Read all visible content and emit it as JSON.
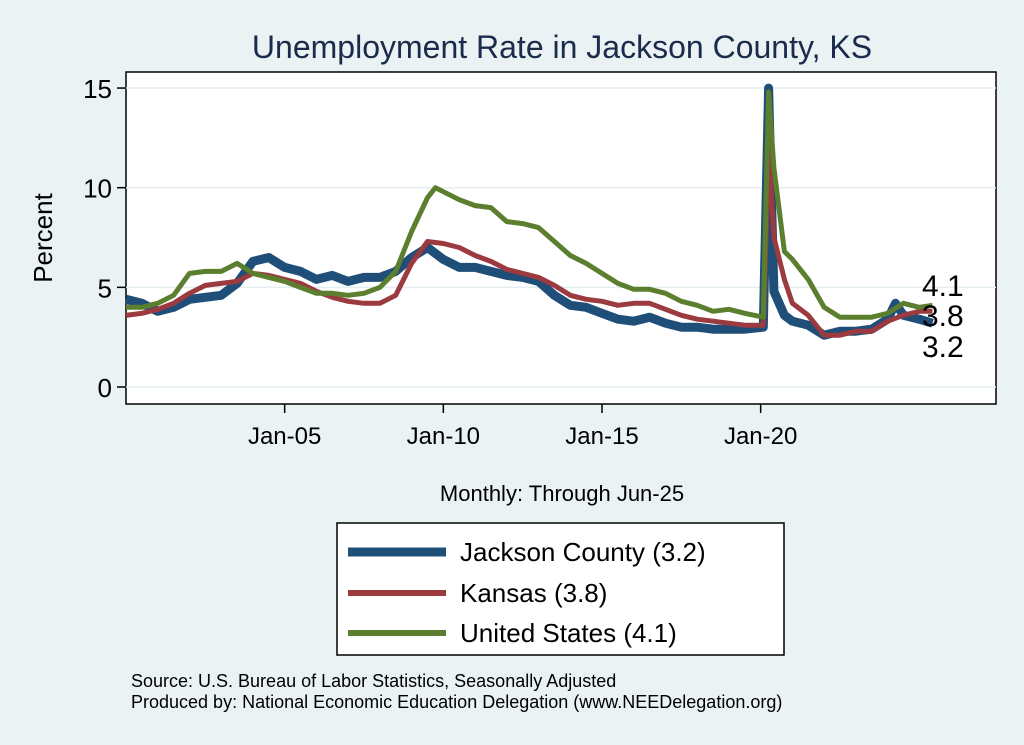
{
  "chart_data": {
    "type": "line",
    "title": "Unemployment Rate in Jackson  County, KS",
    "xlabel": "Monthly: Through Jun-25",
    "ylabel": "Percent",
    "x_ticks": [
      "Jan-05",
      "Jan-10",
      "Jan-15",
      "Jan-20"
    ],
    "y_ticks": [
      "0",
      "5",
      "10",
      "15"
    ],
    "ylim": [
      0,
      15.5
    ],
    "xlim": [
      "2000-01",
      "2027-06"
    ],
    "grid": true,
    "legend_position": "bottom",
    "series": [
      {
        "name": "Jackson  County (3.2)",
        "color": "#1f4e79",
        "end_label": "3.2",
        "points": [
          [
            "2000-01",
            4.4
          ],
          [
            "2000-07",
            4.2
          ],
          [
            "2001-01",
            3.8
          ],
          [
            "2001-07",
            4.0
          ],
          [
            "2002-01",
            4.4
          ],
          [
            "2002-07",
            4.5
          ],
          [
            "2003-01",
            4.6
          ],
          [
            "2003-07",
            5.2
          ],
          [
            "2004-01",
            6.3
          ],
          [
            "2004-07",
            6.5
          ],
          [
            "2005-01",
            6.0
          ],
          [
            "2005-07",
            5.8
          ],
          [
            "2006-01",
            5.4
          ],
          [
            "2006-07",
            5.6
          ],
          [
            "2007-01",
            5.3
          ],
          [
            "2007-07",
            5.5
          ],
          [
            "2008-01",
            5.5
          ],
          [
            "2008-07",
            5.8
          ],
          [
            "2009-01",
            6.5
          ],
          [
            "2009-07",
            7.0
          ],
          [
            "2010-01",
            6.4
          ],
          [
            "2010-07",
            6.0
          ],
          [
            "2011-01",
            6.0
          ],
          [
            "2011-07",
            5.8
          ],
          [
            "2012-01",
            5.6
          ],
          [
            "2012-07",
            5.5
          ],
          [
            "2013-01",
            5.3
          ],
          [
            "2013-07",
            4.6
          ],
          [
            "2014-01",
            4.1
          ],
          [
            "2014-07",
            4.0
          ],
          [
            "2015-01",
            3.7
          ],
          [
            "2015-07",
            3.4
          ],
          [
            "2016-01",
            3.3
          ],
          [
            "2016-07",
            3.5
          ],
          [
            "2017-01",
            3.2
          ],
          [
            "2017-07",
            3.0
          ],
          [
            "2018-01",
            3.0
          ],
          [
            "2018-07",
            2.9
          ],
          [
            "2019-01",
            2.9
          ],
          [
            "2019-07",
            2.9
          ],
          [
            "2020-02",
            3.0
          ],
          [
            "2020-04",
            15.0
          ],
          [
            "2020-06",
            4.8
          ],
          [
            "2020-10",
            3.6
          ],
          [
            "2021-01",
            3.3
          ],
          [
            "2021-07",
            3.1
          ],
          [
            "2022-01",
            2.6
          ],
          [
            "2022-07",
            2.8
          ],
          [
            "2023-01",
            2.8
          ],
          [
            "2023-07",
            2.9
          ],
          [
            "2024-01",
            3.4
          ],
          [
            "2024-04",
            4.2
          ],
          [
            "2024-07",
            3.6
          ],
          [
            "2025-01",
            3.4
          ],
          [
            "2025-06",
            3.2
          ]
        ]
      },
      {
        "name": "Kansas (3.8)",
        "color": "#9b3a3f",
        "end_label": "3.8",
        "points": [
          [
            "2000-01",
            3.6
          ],
          [
            "2000-07",
            3.7
          ],
          [
            "2001-01",
            3.9
          ],
          [
            "2001-07",
            4.2
          ],
          [
            "2002-01",
            4.7
          ],
          [
            "2002-07",
            5.1
          ],
          [
            "2003-01",
            5.2
          ],
          [
            "2003-07",
            5.3
          ],
          [
            "2004-01",
            5.7
          ],
          [
            "2004-07",
            5.6
          ],
          [
            "2005-01",
            5.4
          ],
          [
            "2005-07",
            5.2
          ],
          [
            "2006-01",
            4.8
          ],
          [
            "2006-07",
            4.5
          ],
          [
            "2007-01",
            4.3
          ],
          [
            "2007-07",
            4.2
          ],
          [
            "2008-01",
            4.2
          ],
          [
            "2008-07",
            4.6
          ],
          [
            "2009-01",
            6.2
          ],
          [
            "2009-07",
            7.3
          ],
          [
            "2010-01",
            7.2
          ],
          [
            "2010-07",
            7.0
          ],
          [
            "2011-01",
            6.6
          ],
          [
            "2011-07",
            6.3
          ],
          [
            "2012-01",
            5.9
          ],
          [
            "2012-07",
            5.7
          ],
          [
            "2013-01",
            5.5
          ],
          [
            "2013-07",
            5.1
          ],
          [
            "2014-01",
            4.6
          ],
          [
            "2014-07",
            4.4
          ],
          [
            "2015-01",
            4.3
          ],
          [
            "2015-07",
            4.1
          ],
          [
            "2016-01",
            4.2
          ],
          [
            "2016-07",
            4.2
          ],
          [
            "2017-01",
            3.9
          ],
          [
            "2017-07",
            3.6
          ],
          [
            "2018-01",
            3.4
          ],
          [
            "2018-07",
            3.3
          ],
          [
            "2019-01",
            3.2
          ],
          [
            "2019-07",
            3.1
          ],
          [
            "2020-02",
            3.1
          ],
          [
            "2020-04",
            11.8
          ],
          [
            "2020-06",
            7.5
          ],
          [
            "2020-10",
            5.4
          ],
          [
            "2021-01",
            4.2
          ],
          [
            "2021-07",
            3.6
          ],
          [
            "2022-01",
            2.6
          ],
          [
            "2022-07",
            2.6
          ],
          [
            "2023-01",
            2.8
          ],
          [
            "2023-07",
            2.8
          ],
          [
            "2024-01",
            3.3
          ],
          [
            "2024-07",
            3.6
          ],
          [
            "2025-01",
            3.8
          ],
          [
            "2025-06",
            3.8
          ]
        ]
      },
      {
        "name": "United States (4.1)",
        "color": "#5b7f2e",
        "end_label": "4.1",
        "points": [
          [
            "2000-01",
            4.0
          ],
          [
            "2000-07",
            4.0
          ],
          [
            "2001-01",
            4.2
          ],
          [
            "2001-07",
            4.6
          ],
          [
            "2002-01",
            5.7
          ],
          [
            "2002-07",
            5.8
          ],
          [
            "2003-01",
            5.8
          ],
          [
            "2003-07",
            6.2
          ],
          [
            "2004-01",
            5.7
          ],
          [
            "2004-07",
            5.5
          ],
          [
            "2005-01",
            5.3
          ],
          [
            "2005-07",
            5.0
          ],
          [
            "2006-01",
            4.7
          ],
          [
            "2006-07",
            4.7
          ],
          [
            "2007-01",
            4.6
          ],
          [
            "2007-07",
            4.7
          ],
          [
            "2008-01",
            5.0
          ],
          [
            "2008-07",
            5.8
          ],
          [
            "2009-01",
            7.8
          ],
          [
            "2009-07",
            9.5
          ],
          [
            "2009-10",
            10.0
          ],
          [
            "2010-07",
            9.4
          ],
          [
            "2011-01",
            9.1
          ],
          [
            "2011-07",
            9.0
          ],
          [
            "2012-01",
            8.3
          ],
          [
            "2012-07",
            8.2
          ],
          [
            "2013-01",
            8.0
          ],
          [
            "2013-07",
            7.3
          ],
          [
            "2014-01",
            6.6
          ],
          [
            "2014-07",
            6.2
          ],
          [
            "2015-01",
            5.7
          ],
          [
            "2015-07",
            5.2
          ],
          [
            "2016-01",
            4.9
          ],
          [
            "2016-07",
            4.9
          ],
          [
            "2017-01",
            4.7
          ],
          [
            "2017-07",
            4.3
          ],
          [
            "2018-01",
            4.1
          ],
          [
            "2018-07",
            3.8
          ],
          [
            "2019-01",
            3.9
          ],
          [
            "2019-07",
            3.7
          ],
          [
            "2020-02",
            3.5
          ],
          [
            "2020-04",
            14.8
          ],
          [
            "2020-06",
            11.0
          ],
          [
            "2020-10",
            6.8
          ],
          [
            "2021-01",
            6.4
          ],
          [
            "2021-07",
            5.4
          ],
          [
            "2022-01",
            4.0
          ],
          [
            "2022-07",
            3.5
          ],
          [
            "2023-01",
            3.5
          ],
          [
            "2023-07",
            3.5
          ],
          [
            "2024-01",
            3.7
          ],
          [
            "2024-07",
            4.2
          ],
          [
            "2025-01",
            4.0
          ],
          [
            "2025-06",
            4.1
          ]
        ]
      }
    ]
  },
  "legend": {
    "items": [
      "Jackson  County (3.2)",
      "Kansas (3.8)",
      "United States (4.1)"
    ]
  },
  "footer": {
    "source": "Source: U.S. Bureau of Labor Statistics, Seasonally Adjusted",
    "producer": "Produced by: National Economic Education Delegation (www.NEEDelegation.org)"
  }
}
